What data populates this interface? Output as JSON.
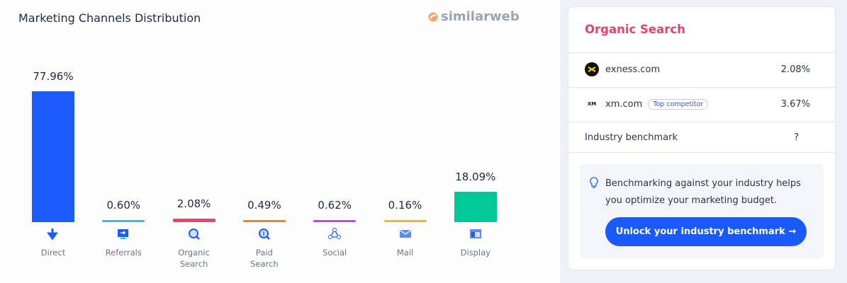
{
  "header": {
    "logo": "similarweb"
  },
  "chart_data": {
    "type": "bar",
    "title": "Marketing Channels Distribution",
    "categories": [
      "Direct",
      "Referrals",
      "Organic Search",
      "Paid Search",
      "Social",
      "Mail",
      "Display"
    ],
    "values": [
      77.96,
      0.6,
      2.08,
      0.49,
      0.62,
      0.16,
      18.09
    ],
    "value_labels": [
      "77.96%",
      "0.60%",
      "2.08%",
      "0.49%",
      "0.62%",
      "0.16%",
      "18.09%"
    ],
    "colors": [
      "#1b5cff",
      "#22c3ec",
      "#f2406c",
      "#f5821f",
      "#b34fe3",
      "#f6b51f",
      "#00c896"
    ]
  },
  "panel": {
    "title": "Organic Search",
    "rows": [
      {
        "logo": "",
        "site": "exness.com",
        "value": "2.08%"
      },
      {
        "logo": "XM",
        "site": "xm.com",
        "badge": "Top competitor",
        "value": "3.67%"
      },
      {
        "label": "Industry benchmark",
        "value": "?"
      }
    ],
    "note": "Benchmarking against your industry helps you optimize your marketing budget.",
    "button": "Unlock your industry benchmark →"
  }
}
